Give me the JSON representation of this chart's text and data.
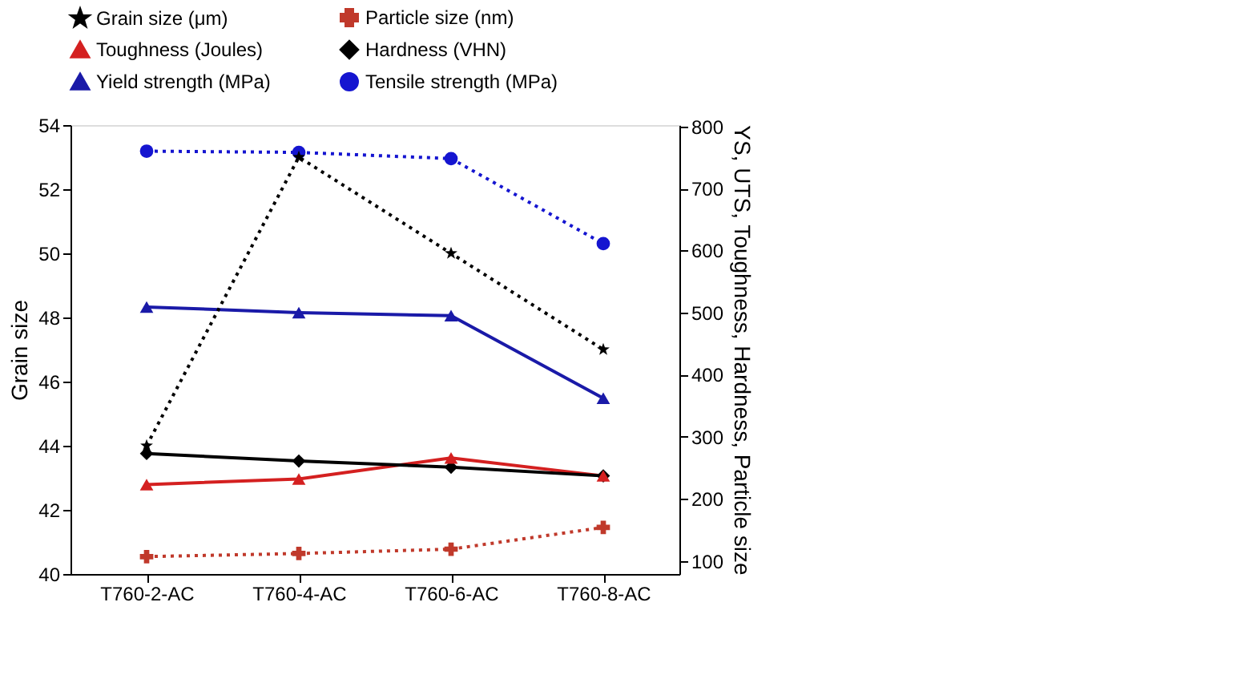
{
  "chart_data": {
    "type": "line",
    "xlabel": null,
    "ylabel": "Grain size",
    "y2label": "YS, UTS, Toughness, Hardness, Particle size",
    "categories": [
      "T760-2-AC",
      "T760-4-AC",
      "T760-6-AC",
      "T760-8-AC"
    ],
    "series": [
      {
        "name": "Grain size (μm)",
        "color": "#000000",
        "values": [
          44.0,
          53.0,
          50.0,
          47.0
        ],
        "marker": "star",
        "line_style": "dotted"
      },
      {
        "name": "Particle size (nm)",
        "color": "#c0392b",
        "values": [
          107,
          112,
          119,
          154
        ],
        "marker": "cross",
        "line_style": "dotted",
        "axis": "y2"
      },
      {
        "name": "Toughness (Joules)",
        "color": "#d42020",
        "values": [
          223,
          232,
          266,
          237
        ],
        "marker": "triangle",
        "line_style": "solid",
        "axis": "y2"
      },
      {
        "name": "Hardness (VHN)",
        "color": "#000000",
        "values": [
          273,
          261,
          251,
          237
        ],
        "marker": "diamond",
        "line_style": "solid",
        "axis": "y2"
      },
      {
        "name": "Yield strength (MPa)",
        "color": "#1a1aa8",
        "values": [
          509,
          500,
          495,
          362
        ],
        "marker": "triangle",
        "line_style": "solid",
        "axis": "y2"
      },
      {
        "name": "Tensile strength (MPa)",
        "color": "#1515d0",
        "values": [
          760,
          758,
          748,
          611
        ],
        "marker": "circle",
        "line_style": "dotted",
        "axis": "y2"
      }
    ],
    "ylim": [
      40,
      54
    ],
    "yticks": [
      40,
      42,
      44,
      46,
      48,
      50,
      52,
      54
    ],
    "y2lim": [
      79,
      802
    ],
    "y2ticks": [
      100,
      200,
      300,
      400,
      500,
      600,
      700,
      800
    ],
    "grid": false,
    "legend": "top"
  }
}
